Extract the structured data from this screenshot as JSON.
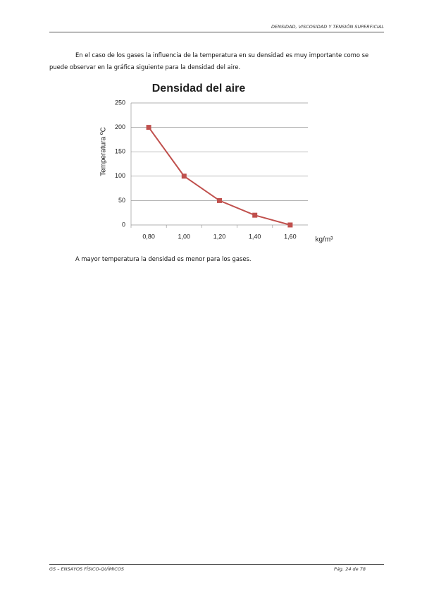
{
  "header": {
    "title": "DENSIDAD, VISCOSIDAD Y TENSIÓN SUPERFICIAL"
  },
  "paragraphs": [
    "En el caso de los gases la influencia de la temperatura en su densidad es muy importante como se puede observar en la gráfica siguiente para la densidad del aire."
  ],
  "chart_data": {
    "type": "line",
    "title": "Densidad del aire",
    "x_label": "kg/m³",
    "y_label": "Temperatura ºC",
    "categories": [
      "0,80",
      "1,00",
      "1,20",
      "1,40",
      "1,60"
    ],
    "series": [
      {
        "name": "Temperatura ºC",
        "color": "#c0504d",
        "values": [
          200,
          100,
          50,
          20,
          0
        ]
      }
    ],
    "ylim": [
      0,
      250
    ],
    "yticks": [
      0,
      50,
      100,
      150,
      200,
      250
    ],
    "grid": true,
    "legend": false
  },
  "conclusion": "A mayor temperatura la densidad es menor para los gases.",
  "footer": {
    "left": "GS – ENSAYOS FÍSICO-QUÍMICOS",
    "right": "Pág. 24 de 78"
  }
}
